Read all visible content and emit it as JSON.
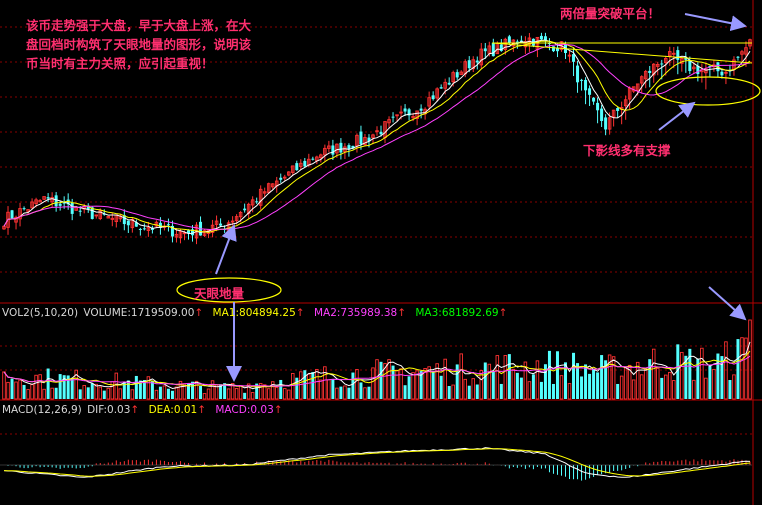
{
  "annotations": {
    "main_text": [
      "该币走势强于大盘，早于大盘上涨，在大",
      "盘回档时构筑了天眼地量的图形，说明该",
      "币当时有主力关照，应引起重视！"
    ],
    "double_volume": "两倍量突破平台！",
    "lower_shadow": "下影线多有支撑",
    "tianyan": "天眼地量"
  },
  "volume_header": {
    "label": "VOL2(5,10,20)",
    "volume": "VOLUME:1719509.00",
    "ma1": "MA1:804894.25",
    "ma2": "MA2:735989.38",
    "ma3": "MA3:681892.69"
  },
  "macd_header": {
    "label": "MACD(12,26,9)",
    "dif": "DIF:0.03",
    "dea": "DEA:0.01",
    "macd": "MACD:0.03"
  },
  "colors": {
    "up": "#ff3232",
    "down": "#54ffff",
    "ma_white": "#ffffff",
    "ma_yellow": "#ffff00",
    "ma_magenta": "#ff40ff",
    "ma_green": "#00ff00",
    "annotation": "#ff2f6f",
    "arrow": "#9999ff",
    "grid": "#b40000"
  },
  "chart_data": {
    "type": "candlestick",
    "panels": [
      "price",
      "volume",
      "macd"
    ],
    "description_points": {
      "close_path": [
        [
          0,
          0.27
        ],
        [
          10,
          0.35
        ],
        [
          20,
          0.3
        ],
        [
          30,
          0.26
        ],
        [
          45,
          0.22
        ],
        [
          55,
          0.25
        ],
        [
          65,
          0.38
        ],
        [
          78,
          0.52
        ],
        [
          90,
          0.58
        ],
        [
          105,
          0.72
        ],
        [
          118,
          0.9
        ],
        [
          130,
          0.97
        ],
        [
          140,
          0.93
        ],
        [
          145,
          0.75
        ],
        [
          150,
          0.63
        ],
        [
          158,
          0.8
        ],
        [
          165,
          0.9
        ],
        [
          172,
          0.85
        ],
        [
          180,
          0.84
        ],
        [
          186,
          0.95
        ]
      ],
      "volume_path": [
        [
          0,
          0.35
        ],
        [
          20,
          0.3
        ],
        [
          40,
          0.22
        ],
        [
          56,
          0.18
        ],
        [
          70,
          0.3
        ],
        [
          90,
          0.4
        ],
        [
          110,
          0.45
        ],
        [
          125,
          0.5
        ],
        [
          140,
          0.52
        ],
        [
          150,
          0.45
        ],
        [
          165,
          0.6
        ],
        [
          178,
          0.55
        ],
        [
          184,
          0.7
        ],
        [
          186,
          1.0
        ]
      ],
      "dif_path": [
        [
          0,
          -0.2
        ],
        [
          20,
          -0.45
        ],
        [
          40,
          -0.05
        ],
        [
          60,
          0.0
        ],
        [
          80,
          0.35
        ],
        [
          100,
          0.5
        ],
        [
          120,
          0.6
        ],
        [
          135,
          0.4
        ],
        [
          145,
          -0.3
        ],
        [
          155,
          -0.45
        ],
        [
          170,
          -0.15
        ],
        [
          186,
          0.15
        ]
      ]
    }
  }
}
